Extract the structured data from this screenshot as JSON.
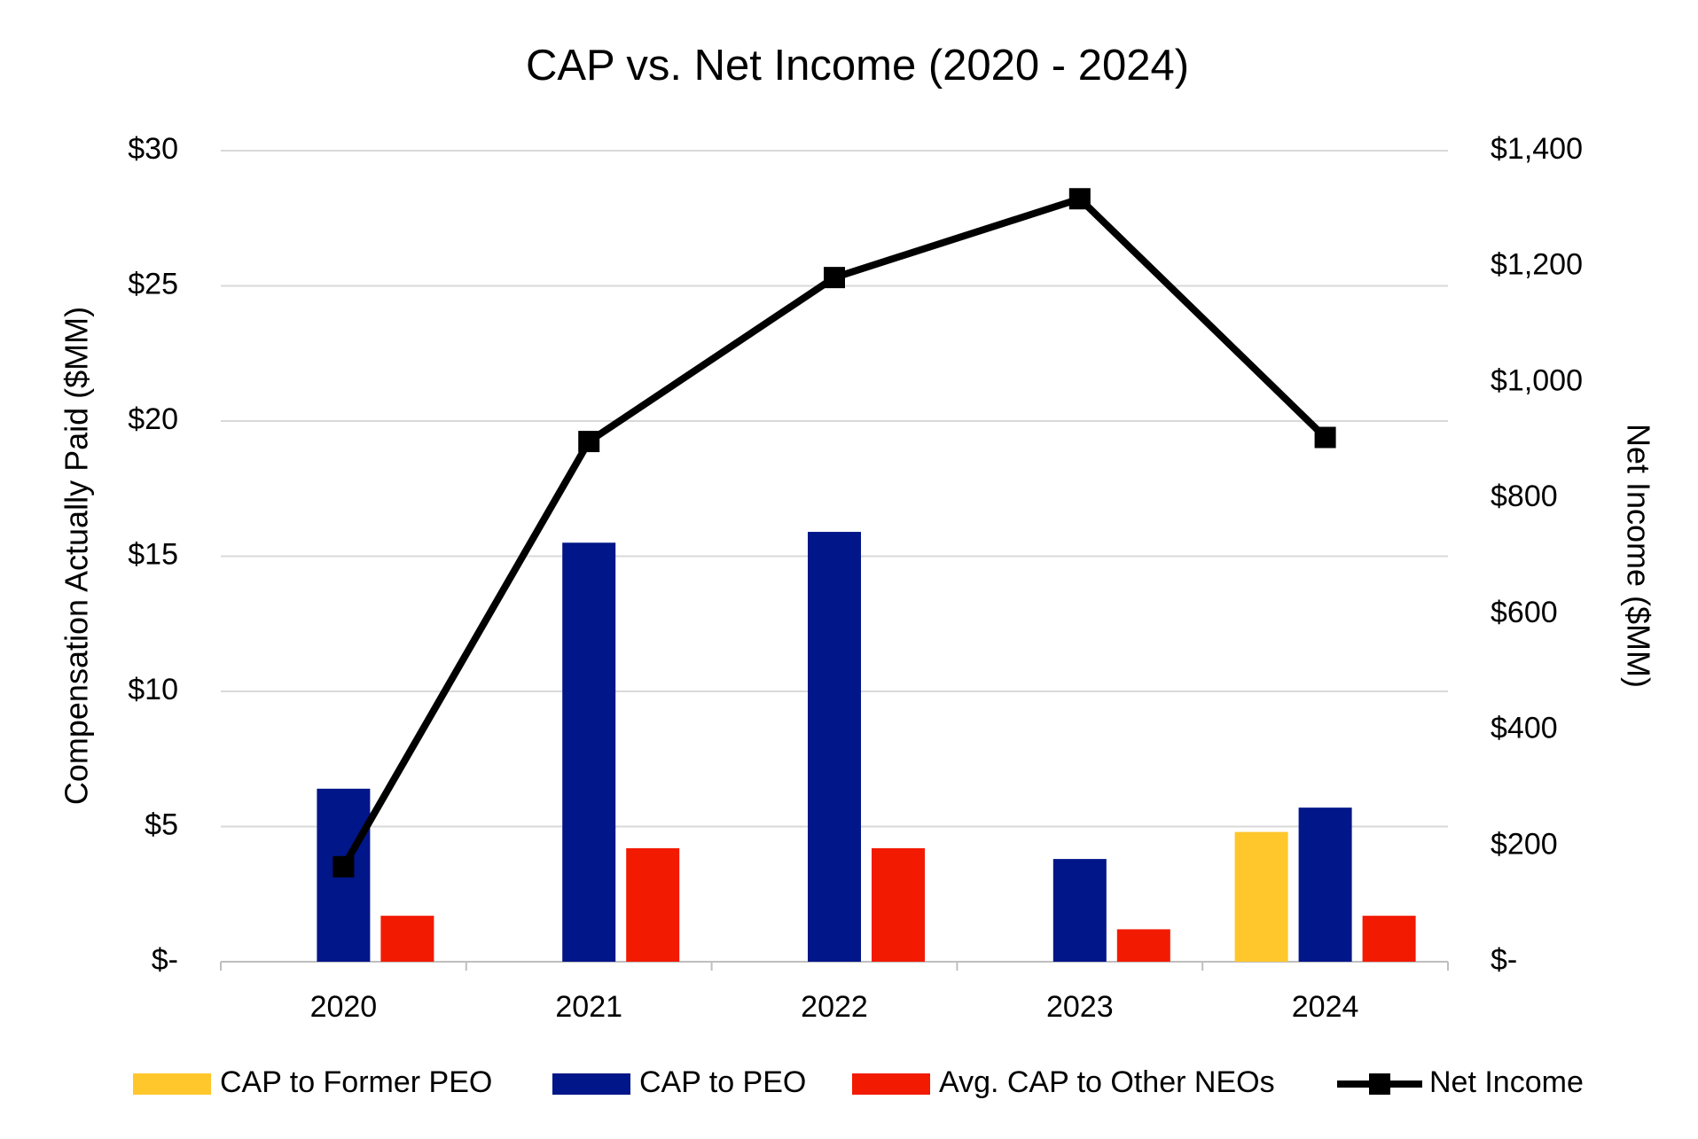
{
  "chart_data": {
    "type": "bar",
    "title": "CAP vs. Net Income (2020 - 2024)",
    "y_label": "Compensation Actually Paid ($MM)",
    "y2_label": "Net Income ($MM)",
    "categories": [
      "2020",
      "2021",
      "2022",
      "2023",
      "2024"
    ],
    "series": [
      {
        "name": "CAP to Former PEO",
        "color": "#ffc72c",
        "values": [
          null,
          null,
          null,
          null,
          4.8
        ]
      },
      {
        "name": "CAP to PEO",
        "color": "#001689",
        "values": [
          6.4,
          15.5,
          15.9,
          3.8,
          5.7
        ]
      },
      {
        "name": "Avg. CAP to Other NEOs",
        "color": "#f21a00",
        "values": [
          1.7,
          4.2,
          4.2,
          1.2,
          1.7
        ]
      },
      {
        "name": "Net Income",
        "color": "#000000",
        "type": "line",
        "marker": "square",
        "axis": "y2",
        "values": [
          164,
          898,
          1181,
          1317,
          905
        ]
      }
    ],
    "ylim": [
      0,
      30
    ],
    "yticks": [
      {
        "value": 0,
        "label": "$-"
      },
      {
        "value": 5,
        "label": "$5"
      },
      {
        "value": 10,
        "label": "$10"
      },
      {
        "value": 15,
        "label": "$15"
      },
      {
        "value": 20,
        "label": "$20"
      },
      {
        "value": 25,
        "label": "$25"
      },
      {
        "value": 30,
        "label": "$30"
      }
    ],
    "y2lim": [
      0,
      1400
    ],
    "y2ticks": [
      {
        "value": 0,
        "label": "$-"
      },
      {
        "value": 200,
        "label": "$200"
      },
      {
        "value": 400,
        "label": "$400"
      },
      {
        "value": 600,
        "label": "$600"
      },
      {
        "value": 800,
        "label": "$800"
      },
      {
        "value": 1000,
        "label": "$1,000"
      },
      {
        "value": 1200,
        "label": "$1,200"
      },
      {
        "value": 1400,
        "label": "$1,400"
      }
    ],
    "grid": true,
    "legend": "bottom"
  }
}
